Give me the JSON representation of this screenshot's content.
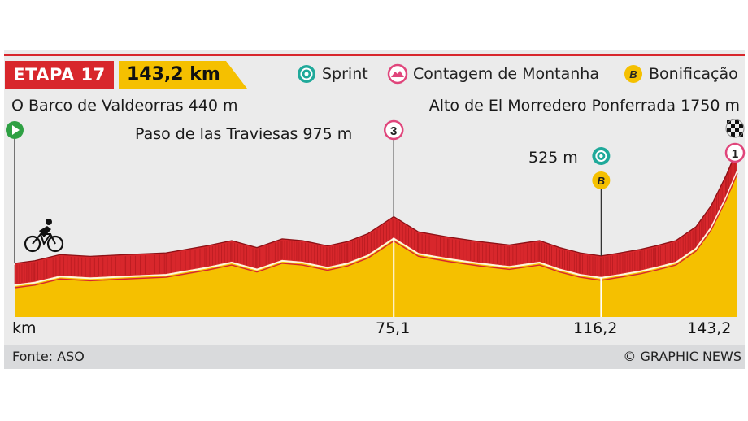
{
  "header": {
    "stage": "ETAPA 17",
    "distance": "143,2 km"
  },
  "legend": {
    "sprint": "Sprint",
    "mountain": "Contagem de Montanha",
    "bonus": "Bonificação"
  },
  "locations": {
    "start": "O Barco de Valdeorras 440 m",
    "climb": "Paso de las Traviesas 975 m",
    "finish": "Alto de El Morredero Ponferrada 1750 m",
    "sprint": "525 m"
  },
  "markers": {
    "climb_category": "3",
    "finish_category": "1",
    "bonus_letter": "B"
  },
  "footer": {
    "source": "Fonte: ASO",
    "credit": "© GRAPHIC NEWS"
  },
  "colors": {
    "red": "#d8272c",
    "yellow": "#f5c000",
    "teal": "#1fa99a",
    "green": "#2ea043",
    "pink": "#e0457b"
  },
  "chart_data": {
    "type": "area",
    "title": "ETAPA 17",
    "xlabel": "km",
    "ylabel": "",
    "xlim": [
      0,
      143.2
    ],
    "x_ticks": [
      "km",
      "75,1",
      "116,2",
      "143,2"
    ],
    "x_tick_values": [
      0,
      75.1,
      116.2,
      143.2
    ],
    "series": [
      {
        "x": [
          0,
          4,
          9,
          15,
          22,
          30,
          38,
          43,
          48,
          53,
          57,
          62,
          66,
          70,
          75.1,
          80,
          86,
          92,
          98,
          104,
          108,
          112,
          116.2,
          120,
          124,
          127,
          131,
          135,
          138,
          141,
          143.2
        ],
        "y": [
          440,
          470,
          540,
          520,
          540,
          560,
          640,
          700,
          620,
          720,
          700,
          640,
          690,
          780,
          975,
          800,
          740,
          690,
          650,
          700,
          620,
          560,
          525,
          560,
          600,
          640,
          700,
          860,
          1100,
          1450,
          1750
        ]
      }
    ],
    "annotations": [
      {
        "x": 0,
        "label": "O Barco de Valdeorras 440 m"
      },
      {
        "x": 75.1,
        "label": "Paso de las Traviesas 975 m"
      },
      {
        "x": 116.2,
        "label": "525 m"
      },
      {
        "x": 143.2,
        "label": "Alto de El Morredero Ponferrada 1750 m"
      }
    ]
  }
}
